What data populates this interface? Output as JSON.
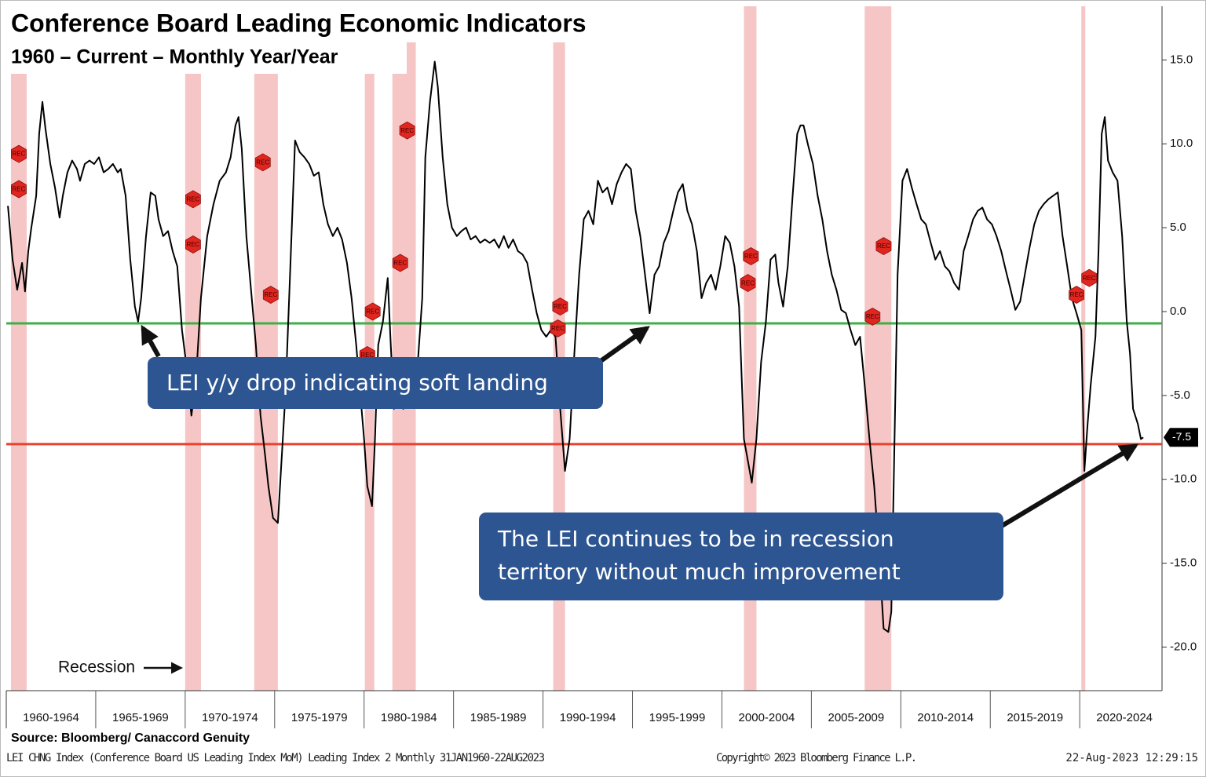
{
  "chart_data": {
    "type": "line",
    "title": "Conference Board Leading Economic Indicators",
    "subtitle": "1960 – Current – Monthly Year/Year",
    "x": [
      1960.09,
      1960.35,
      1960.61,
      1960.88,
      1961.05,
      1961.23,
      1961.4,
      1961.67,
      1961.84,
      1962.02,
      1962.19,
      1962.46,
      1962.72,
      1962.98,
      1963.16,
      1963.42,
      1963.68,
      1963.95,
      1964.12,
      1964.39,
      1964.65,
      1964.91,
      1965.18,
      1965.44,
      1965.7,
      1965.96,
      1966.23,
      1966.4,
      1966.67,
      1966.93,
      1967.19,
      1967.37,
      1967.54,
      1967.81,
      1968.07,
      1968.33,
      1968.51,
      1968.77,
      1969.04,
      1969.3,
      1969.56,
      1969.82,
      1970.09,
      1970.35,
      1970.61,
      1970.88,
      1971.23,
      1971.58,
      1971.93,
      1972.28,
      1972.54,
      1972.81,
      1972.98,
      1973.16,
      1973.42,
      1973.68,
      1973.95,
      1974.21,
      1974.47,
      1974.65,
      1974.91,
      1975.18,
      1975.35,
      1975.61,
      1975.88,
      1976.14,
      1976.4,
      1976.67,
      1976.93,
      1977.19,
      1977.46,
      1977.72,
      1977.98,
      1978.25,
      1978.51,
      1978.77,
      1979.04,
      1979.3,
      1979.56,
      1979.82,
      1980.0,
      1980.18,
      1980.44,
      1980.61,
      1980.79,
      1981.05,
      1981.32,
      1981.49,
      1981.67,
      1981.93,
      1982.19,
      1982.46,
      1982.72,
      1982.98,
      1983.25,
      1983.42,
      1983.68,
      1983.95,
      1984.12,
      1984.39,
      1984.65,
      1984.91,
      1985.18,
      1985.44,
      1985.7,
      1985.96,
      1986.23,
      1986.49,
      1986.75,
      1987.02,
      1987.28,
      1987.54,
      1987.81,
      1988.07,
      1988.33,
      1988.6,
      1988.86,
      1989.12,
      1989.39,
      1989.65,
      1989.91,
      1990.18,
      1990.44,
      1990.7,
      1990.96,
      1991.23,
      1991.49,
      1991.75,
      1992.02,
      1992.28,
      1992.54,
      1992.81,
      1993.07,
      1993.33,
      1993.6,
      1993.86,
      1994.12,
      1994.39,
      1994.65,
      1994.91,
      1995.18,
      1995.44,
      1995.7,
      1995.96,
      1996.23,
      1996.49,
      1996.75,
      1997.02,
      1997.28,
      1997.54,
      1997.81,
      1998.07,
      1998.33,
      1998.6,
      1998.86,
      1999.12,
      1999.39,
      1999.65,
      1999.91,
      2000.18,
      2000.44,
      2000.7,
      2000.96,
      2001.23,
      2001.4,
      2001.67,
      2001.93,
      2002.19,
      2002.46,
      2002.72,
      2002.98,
      2003.16,
      2003.42,
      2003.68,
      2003.95,
      2004.21,
      2004.39,
      2004.56,
      2004.82,
      2005.09,
      2005.35,
      2005.61,
      2005.88,
      2006.14,
      2006.4,
      2006.67,
      2006.93,
      2007.19,
      2007.46,
      2007.72,
      2007.98,
      2008.25,
      2008.51,
      2008.77,
      2009.04,
      2009.3,
      2009.47,
      2009.65,
      2009.82,
      2010.09,
      2010.35,
      2010.61,
      2010.88,
      2011.14,
      2011.4,
      2011.67,
      2011.93,
      2012.19,
      2012.46,
      2012.72,
      2012.98,
      2013.25,
      2013.51,
      2013.77,
      2014.04,
      2014.3,
      2014.56,
      2014.82,
      2015.09,
      2015.35,
      2015.61,
      2015.88,
      2016.14,
      2016.4,
      2016.67,
      2016.93,
      2017.19,
      2017.46,
      2017.72,
      2017.98,
      2018.25,
      2018.51,
      2018.77,
      2019.04,
      2019.3,
      2019.56,
      2019.82,
      2020.09,
      2020.26,
      2020.44,
      2020.61,
      2020.88,
      2021.05,
      2021.23,
      2021.4,
      2021.58,
      2021.84,
      2022.11,
      2022.37,
      2022.63,
      2022.81,
      2022.98,
      2023.25,
      2023.42,
      2023.55
    ],
    "series": [
      {
        "color": "#000000",
        "values": [
          6.3,
          3.1,
          1.3,
          2.9,
          1.2,
          3.6,
          5.0,
          6.9,
          10.6,
          12.5,
          10.9,
          8.8,
          7.4,
          5.6,
          6.9,
          8.3,
          9.0,
          8.5,
          7.8,
          8.8,
          9.0,
          8.8,
          9.2,
          8.3,
          8.5,
          8.8,
          8.3,
          8.5,
          6.9,
          3.1,
          0.3,
          -0.6,
          0.8,
          4.5,
          7.1,
          6.9,
          5.5,
          4.5,
          4.8,
          3.6,
          2.7,
          -1.1,
          -3.4,
          -6.2,
          -3.9,
          0.8,
          4.5,
          6.4,
          7.8,
          8.3,
          9.2,
          11.1,
          11.6,
          9.7,
          4.5,
          1.3,
          -2.0,
          -6.2,
          -8.6,
          -10.4,
          -12.3,
          -12.6,
          -9.5,
          -4.8,
          2.7,
          10.2,
          9.5,
          9.2,
          8.8,
          8.1,
          8.3,
          6.4,
          5.2,
          4.5,
          5.0,
          4.3,
          2.9,
          0.8,
          -2.0,
          -5.3,
          -7.6,
          -10.4,
          -11.6,
          -7.6,
          -2.0,
          -0.6,
          2.0,
          -2.0,
          -5.8,
          -5.3,
          -5.8,
          -4.8,
          -4.8,
          -3.4,
          0.8,
          9.2,
          12.5,
          14.9,
          13.4,
          9.2,
          6.4,
          5.0,
          4.5,
          4.8,
          5.0,
          4.3,
          4.5,
          4.1,
          4.3,
          4.1,
          4.3,
          3.8,
          4.5,
          3.8,
          4.3,
          3.6,
          3.4,
          2.9,
          1.3,
          -0.1,
          -1.1,
          -1.5,
          -1.1,
          -1.5,
          -5.8,
          -9.5,
          -7.6,
          -2.5,
          2.2,
          5.5,
          6.0,
          5.2,
          7.8,
          7.1,
          7.4,
          6.4,
          7.6,
          8.3,
          8.8,
          8.5,
          6.0,
          4.5,
          2.2,
          -0.1,
          2.2,
          2.7,
          4.1,
          4.8,
          6.0,
          7.1,
          7.6,
          6.0,
          5.2,
          3.6,
          0.8,
          1.7,
          2.2,
          1.3,
          2.7,
          4.5,
          4.1,
          2.7,
          0.3,
          -7.6,
          -8.6,
          -10.2,
          -7.6,
          -3.0,
          -0.6,
          3.1,
          3.4,
          1.7,
          0.3,
          2.7,
          6.9,
          10.6,
          11.1,
          11.1,
          9.9,
          8.8,
          6.9,
          5.5,
          3.6,
          2.2,
          1.3,
          0.1,
          -0.1,
          -1.1,
          -2.0,
          -1.5,
          -4.4,
          -7.6,
          -10.4,
          -14.2,
          -18.9,
          -19.1,
          -17.9,
          -7.6,
          2.2,
          7.8,
          8.5,
          7.4,
          6.4,
          5.5,
          5.2,
          4.1,
          3.1,
          3.6,
          2.7,
          2.4,
          1.7,
          1.3,
          3.6,
          4.5,
          5.5,
          6.0,
          6.2,
          5.5,
          5.2,
          4.5,
          3.6,
          2.4,
          1.3,
          0.1,
          0.6,
          2.2,
          3.8,
          5.2,
          6.0,
          6.4,
          6.7,
          6.9,
          7.1,
          4.5,
          2.7,
          0.8,
          -0.1,
          -1.1,
          -9.5,
          -6.7,
          -4.4,
          -1.5,
          3.6,
          10.6,
          11.6,
          9.0,
          8.3,
          7.8,
          4.5,
          -0.6,
          -2.5,
          -5.8,
          -6.7,
          -7.6,
          -7.5
        ]
      }
    ],
    "xlim": [
      1960,
      2024.6
    ],
    "ylim": [
      -22.6,
      18.2
    ],
    "yticks": [
      {
        "value": 15,
        "label": "15.0"
      },
      {
        "value": 10,
        "label": "10.0"
      },
      {
        "value": 5,
        "label": "5.0"
      },
      {
        "value": 0,
        "label": "0.0"
      },
      {
        "value": -5,
        "label": "-5.0"
      },
      {
        "value": -10,
        "label": "-10.0"
      },
      {
        "value": -15,
        "label": "-15.0"
      },
      {
        "value": -20,
        "label": "-20.0"
      }
    ],
    "xticks": [
      {
        "value": 1962.5,
        "label": "1960-1964"
      },
      {
        "value": 1967.5,
        "label": "1965-1969"
      },
      {
        "value": 1972.5,
        "label": "1970-1974"
      },
      {
        "value": 1977.5,
        "label": "1975-1979"
      },
      {
        "value": 1982.5,
        "label": "1980-1984"
      },
      {
        "value": 1987.5,
        "label": "1985-1989"
      },
      {
        "value": 1992.5,
        "label": "1990-1994"
      },
      {
        "value": 1997.5,
        "label": "1995-1999"
      },
      {
        "value": 2002.5,
        "label": "2000-2004"
      },
      {
        "value": 2007.5,
        "label": "2005-2009"
      },
      {
        "value": 2012.5,
        "label": "2010-2014"
      },
      {
        "value": 2017.5,
        "label": "2015-2019"
      },
      {
        "value": 2022.5,
        "label": "2020-2024"
      }
    ],
    "x_separators": [
      1965,
      1970,
      1975,
      1980,
      1985,
      1990,
      1995,
      2000,
      2005,
      2010,
      2015,
      2020
    ],
    "recessions": {
      "color": "#f4bcbc",
      "ranges": [
        [
          1960.26,
          1961.14
        ],
        [
          1970.0,
          1970.88
        ],
        [
          1973.86,
          1975.18
        ],
        [
          1980.04,
          1980.57
        ],
        [
          1981.58,
          1982.89
        ],
        [
          1990.57,
          1991.23
        ],
        [
          2001.23,
          2001.93
        ],
        [
          2007.98,
          2009.47
        ],
        [
          2020.09,
          2020.31
        ]
      ]
    },
    "rec_markers": {
      "label": "REC",
      "color": "#e0261f",
      "x": [
        1960.7,
        1960.7,
        1970.44,
        1970.44,
        1974.34,
        1974.78,
        1980.48,
        1980.18,
        1982.41,
        1982.02,
        1990.96,
        1990.83,
        2001.62,
        2001.45,
        2009.04,
        2008.42,
        2020.53,
        2019.82
      ],
      "y": [
        9.4,
        7.3,
        6.7,
        4.0,
        8.9,
        1.0,
        0.0,
        -2.6,
        10.8,
        2.9,
        0.3,
        -1.0,
        3.3,
        1.7,
        3.9,
        -0.3,
        2.0,
        1.0
      ]
    },
    "reference_lines": [
      {
        "value": -0.7,
        "color": "#3fae49"
      },
      {
        "value": -7.9,
        "color": "#e8412c"
      }
    ],
    "recession_label": "Recession",
    "annotations": [
      "LEI y/y drop indicating soft landing",
      "The LEI continues to be in recession territory without much improvement"
    ],
    "source": "Source: Bloomberg/ Canaccord Genuity",
    "footer": {
      "left": "LEI CHNG Index (Conference Board US Leading Index MoM) Leading Index 2  Monthly 31JAN1960-22AUG2023",
      "center": "Copyright© 2023 Bloomberg Finance L.P.",
      "right": "22-Aug-2023 12:29:15"
    }
  }
}
